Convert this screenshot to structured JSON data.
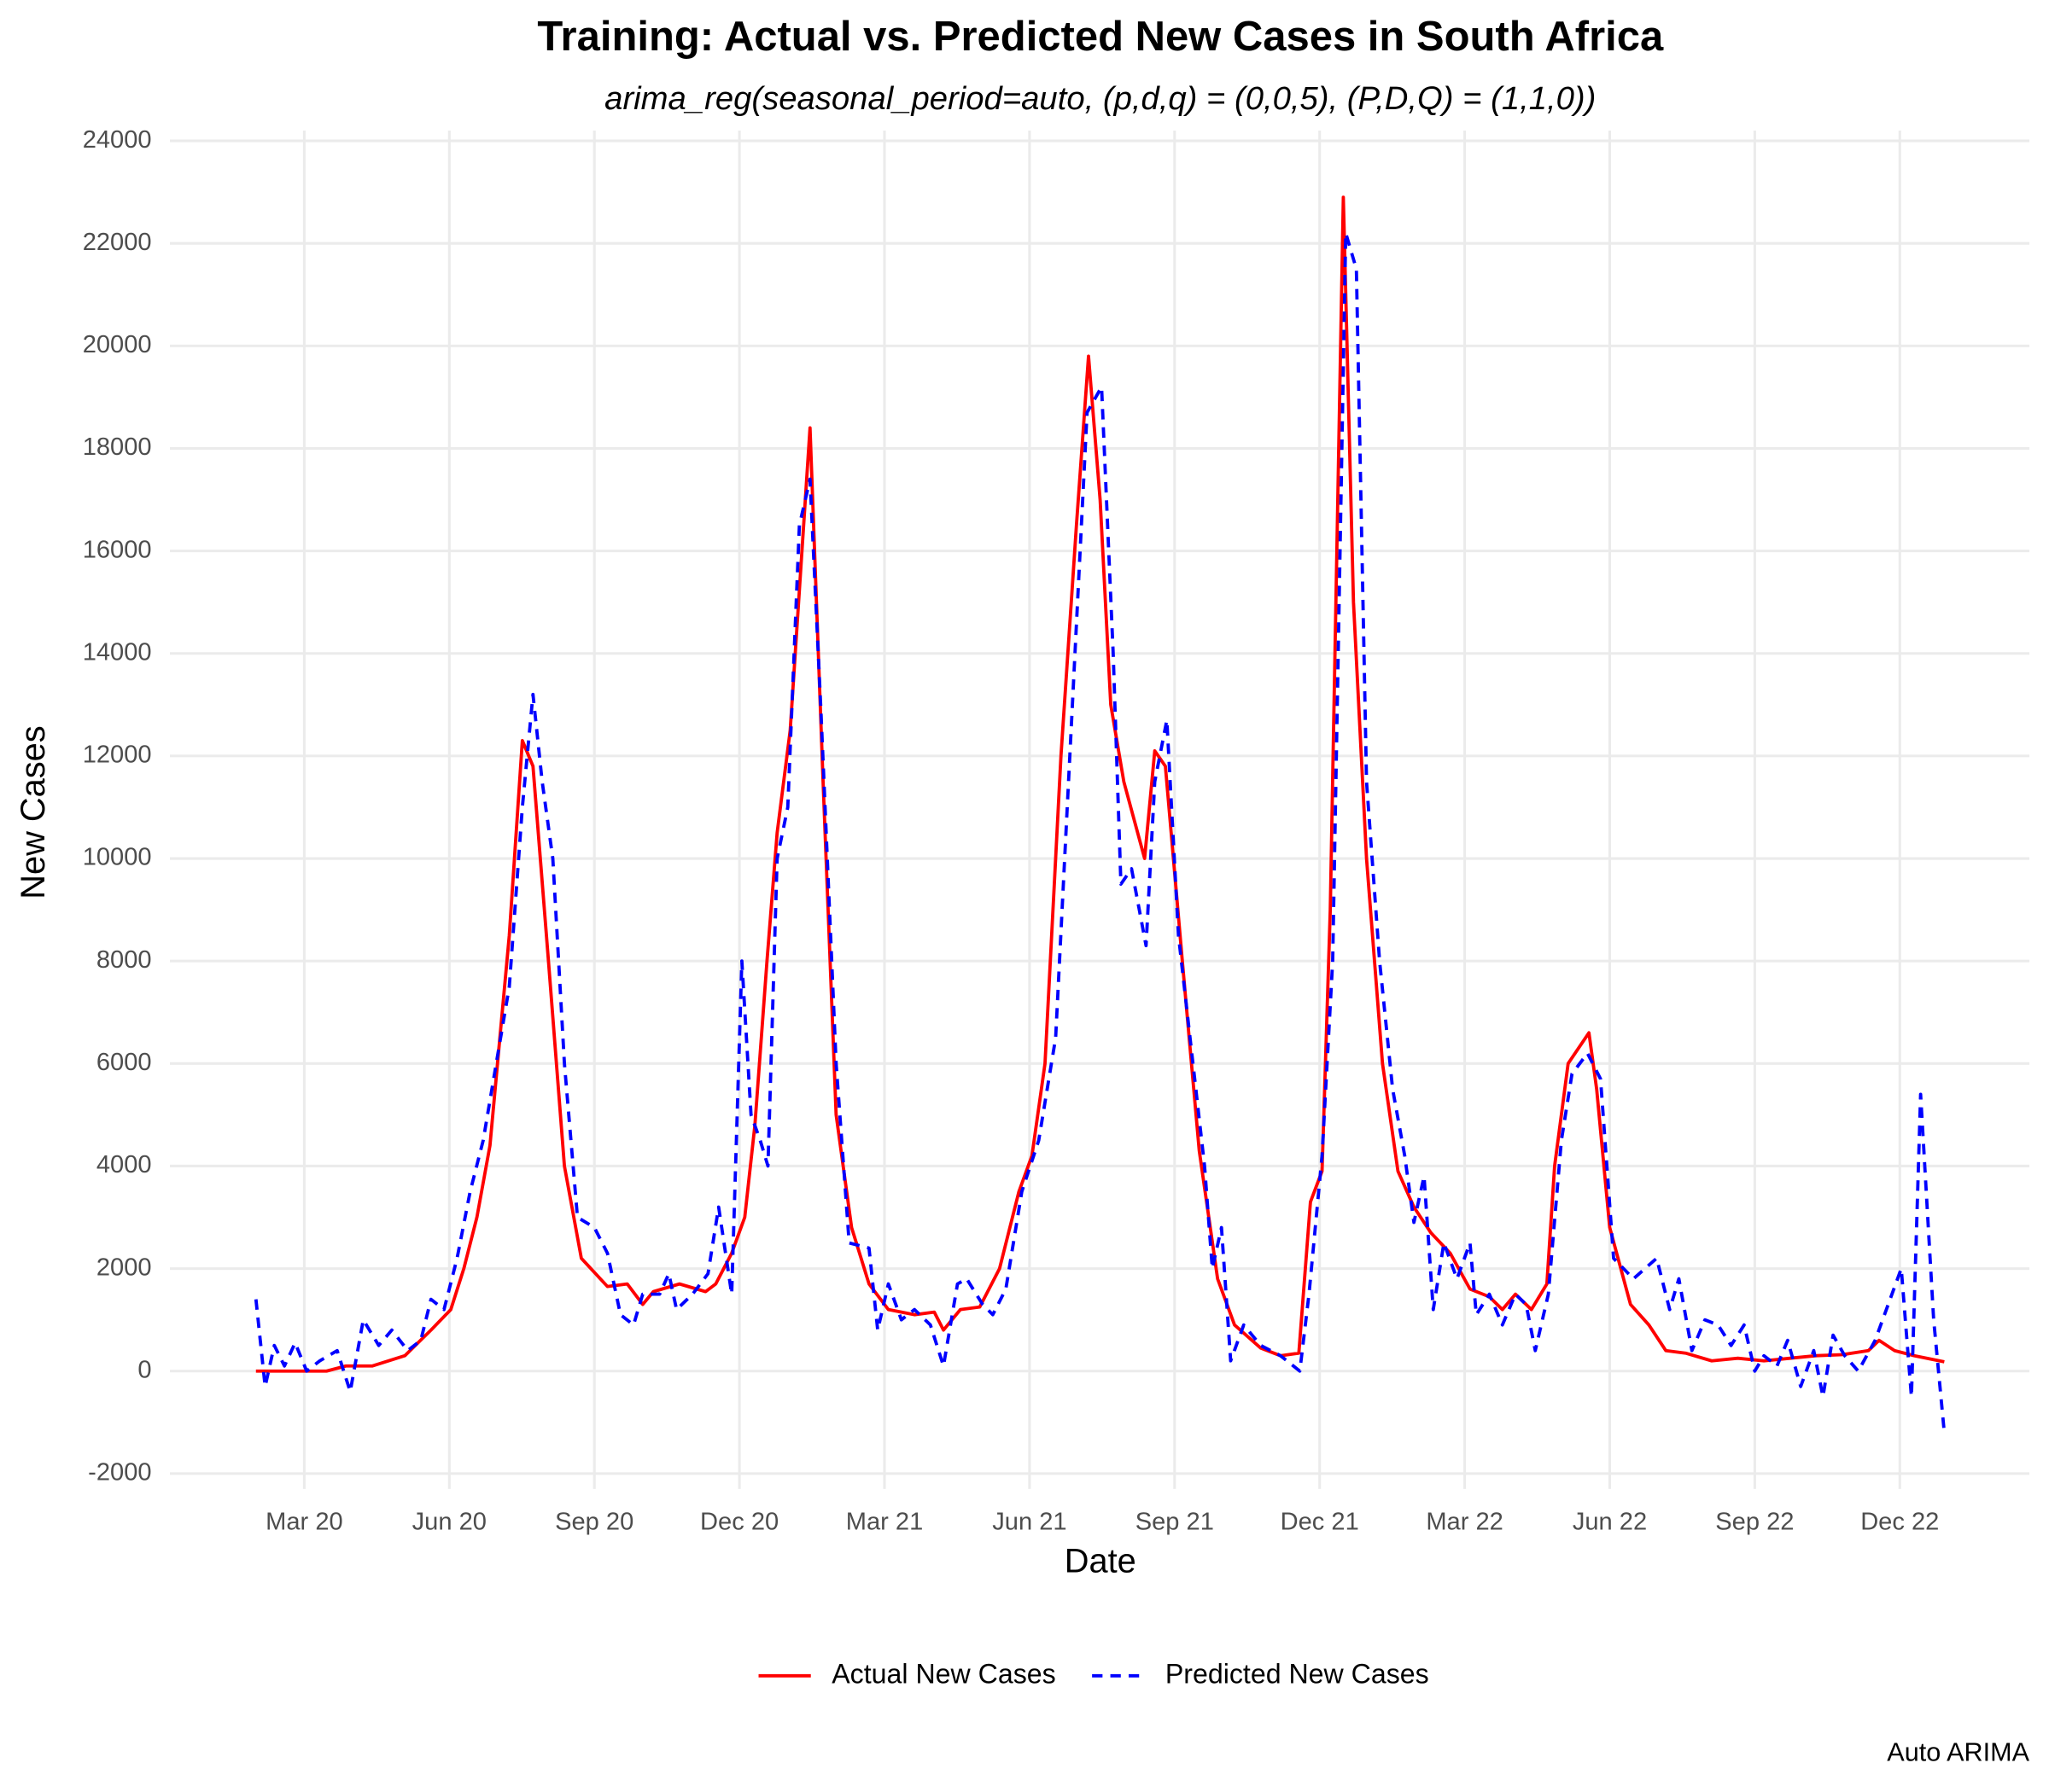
{
  "chart_data": {
    "type": "line",
    "title": "Training: Actual vs. Predicted New Cases in South Africa",
    "subtitle": "arima_reg(seasonal_period=auto, (p,d,q) = (0,0,5), (P,D,Q) = (1,1,0))",
    "x_label": "Date",
    "y_label": "New Cases",
    "caption": "Auto ARIMA",
    "xlim": [
      -0.78,
      37.68
    ],
    "ylim": [
      -2300,
      24200
    ],
    "xticks": [
      {
        "value": 2,
        "label": "Mar 20"
      },
      {
        "value": 5,
        "label": "Jun 20"
      },
      {
        "value": 8,
        "label": "Sep 20"
      },
      {
        "value": 11,
        "label": "Dec 20"
      },
      {
        "value": 14,
        "label": "Mar 21"
      },
      {
        "value": 17,
        "label": "Jun 21"
      },
      {
        "value": 20,
        "label": "Sep 21"
      },
      {
        "value": 23,
        "label": "Dec 21"
      },
      {
        "value": 26,
        "label": "Mar 22"
      },
      {
        "value": 29,
        "label": "Jun 22"
      },
      {
        "value": 32,
        "label": "Sep 22"
      },
      {
        "value": 35,
        "label": "Dec 22"
      }
    ],
    "yticks": [
      -2000,
      0,
      2000,
      4000,
      6000,
      8000,
      10000,
      12000,
      14000,
      16000,
      18000,
      20000,
      22000,
      24000
    ],
    "grid": true,
    "legend": "bottom",
    "series": [
      {
        "name": "Actual New Cases",
        "color": "#ff0000",
        "linestyle": "solid",
        "x": [
          1.0,
          2.46,
          2.86,
          3.41,
          4.08,
          4.62,
          5.03,
          5.3,
          5.57,
          5.84,
          6.24,
          6.51,
          6.73,
          7.05,
          7.38,
          7.73,
          8.27,
          8.68,
          9.0,
          9.22,
          9.76,
          10.3,
          10.51,
          10.84,
          11.11,
          11.32,
          11.57,
          11.78,
          12.05,
          12.46,
          12.73,
          13.0,
          13.32,
          13.68,
          14.08,
          14.62,
          15.03,
          15.22,
          15.57,
          15.97,
          16.38,
          16.78,
          17.05,
          17.32,
          17.65,
          17.97,
          18.22,
          18.46,
          18.68,
          18.95,
          19.38,
          19.59,
          19.81,
          20.16,
          20.51,
          20.89,
          21.24,
          21.78,
          22.19,
          22.57,
          22.81,
          23.05,
          23.22,
          23.49,
          23.7,
          23.97,
          24.3,
          24.62,
          24.95,
          25.3,
          25.7,
          26.11,
          26.51,
          26.78,
          27.05,
          27.38,
          27.7,
          27.86,
          28.14,
          28.57,
          28.73,
          29.0,
          29.43,
          29.81,
          30.16,
          30.57,
          31.11,
          31.65,
          32.19,
          32.73,
          33.27,
          33.81,
          34.35,
          34.57,
          34.89,
          35.3,
          35.92
        ],
        "values": [
          0,
          0,
          100,
          100,
          300,
          800,
          1200,
          2000,
          3000,
          4400,
          8500,
          12300,
          11800,
          8000,
          4000,
          2200,
          1650,
          1700,
          1300,
          1550,
          1700,
          1550,
          1700,
          2300,
          3000,
          4800,
          8000,
          10500,
          12500,
          18400,
          11500,
          5000,
          2800,
          1700,
          1200,
          1100,
          1150,
          800,
          1200,
          1250,
          2000,
          3500,
          4200,
          6000,
          12000,
          16500,
          19800,
          17000,
          13000,
          11500,
          10000,
          12100,
          11800,
          8000,
          4300,
          1800,
          900,
          450,
          300,
          350,
          3300,
          3900,
          9000,
          22900,
          15000,
          10000,
          6000,
          3900,
          3200,
          2700,
          2300,
          1600,
          1450,
          1200,
          1500,
          1200,
          1700,
          4000,
          6000,
          6600,
          5500,
          2800,
          1300,
          900,
          400,
          350,
          200,
          250,
          200,
          250,
          300,
          320,
          400,
          600,
          400,
          300,
          180
        ]
      },
      {
        "name": "Predicted New Cases",
        "color": "#0000ff",
        "linestyle": "dashed",
        "x": [
          1.0,
          1.19,
          1.38,
          1.59,
          1.81,
          2.05,
          2.32,
          2.68,
          2.95,
          3.22,
          3.54,
          3.81,
          4.14,
          4.41,
          4.62,
          4.89,
          5.16,
          5.43,
          5.7,
          5.97,
          6.24,
          6.51,
          6.73,
          6.92,
          7.14,
          7.38,
          7.65,
          8.0,
          8.27,
          8.54,
          8.81,
          9.0,
          9.35,
          9.54,
          9.7,
          10.03,
          10.35,
          10.57,
          10.84,
          11.05,
          11.24,
          11.43,
          11.59,
          11.78,
          12.0,
          12.24,
          12.46,
          12.68,
          13.0,
          13.27,
          13.68,
          13.86,
          14.08,
          14.35,
          14.62,
          14.95,
          15.22,
          15.51,
          15.7,
          16.03,
          16.24,
          16.51,
          16.84,
          17.19,
          17.54,
          17.86,
          18.19,
          18.49,
          18.73,
          18.89,
          19.11,
          19.41,
          19.59,
          19.84,
          20.08,
          20.38,
          20.62,
          20.78,
          20.97,
          21.16,
          21.43,
          21.78,
          22.19,
          22.59,
          22.78,
          23.05,
          23.27,
          23.54,
          23.76,
          23.97,
          24.24,
          24.51,
          24.76,
          24.95,
          25.16,
          25.35,
          25.57,
          25.84,
          26.11,
          26.24,
          26.51,
          26.78,
          27.05,
          27.27,
          27.46,
          27.73,
          28.0,
          28.22,
          28.54,
          28.81,
          29.08,
          29.49,
          29.97,
          30.24,
          30.43,
          30.7,
          30.97,
          31.24,
          31.51,
          31.78,
          32.0,
          32.19,
          32.46,
          32.68,
          32.95,
          33.22,
          33.41,
          33.62,
          33.86,
          34.14,
          34.49,
          34.76,
          35.03,
          35.24,
          35.43,
          35.7,
          35.92
        ],
        "values": [
          1400,
          -300,
          500,
          100,
          550,
          0,
          200,
          400,
          -400,
          1000,
          500,
          800,
          400,
          600,
          1400,
          1200,
          2200,
          3500,
          4500,
          6000,
          7500,
          11000,
          13200,
          11500,
          10000,
          6000,
          3000,
          2800,
          2300,
          1100,
          900,
          1500,
          1500,
          1900,
          1200,
          1500,
          1900,
          3200,
          1500,
          8000,
          5000,
          4500,
          4000,
          10000,
          11000,
          16500,
          17400,
          13000,
          6000,
          2500,
          2400,
          800,
          1700,
          1000,
          1200,
          900,
          100,
          1700,
          1800,
          1300,
          1100,
          1600,
          3500,
          4500,
          6500,
          12500,
          18700,
          19200,
          14000,
          9500,
          9800,
          8300,
          11500,
          12700,
          8500,
          6000,
          4000,
          2000,
          2800,
          200,
          900,
          500,
          300,
          0,
          1500,
          4200,
          8000,
          22200,
          21500,
          11500,
          8000,
          5500,
          4200,
          2900,
          3800,
          1200,
          2500,
          1800,
          2500,
          1100,
          1500,
          900,
          1500,
          1300,
          400,
          1500,
          4500,
          5800,
          6200,
          5700,
          2200,
          1800,
          2200,
          1200,
          1800,
          400,
          1000,
          900,
          500,
          900,
          0,
          300,
          100,
          600,
          -300,
          400,
          -500,
          700,
          300,
          0,
          600,
          1300,
          2000,
          -500,
          5400,
          1000,
          -1200
        ]
      }
    ]
  }
}
